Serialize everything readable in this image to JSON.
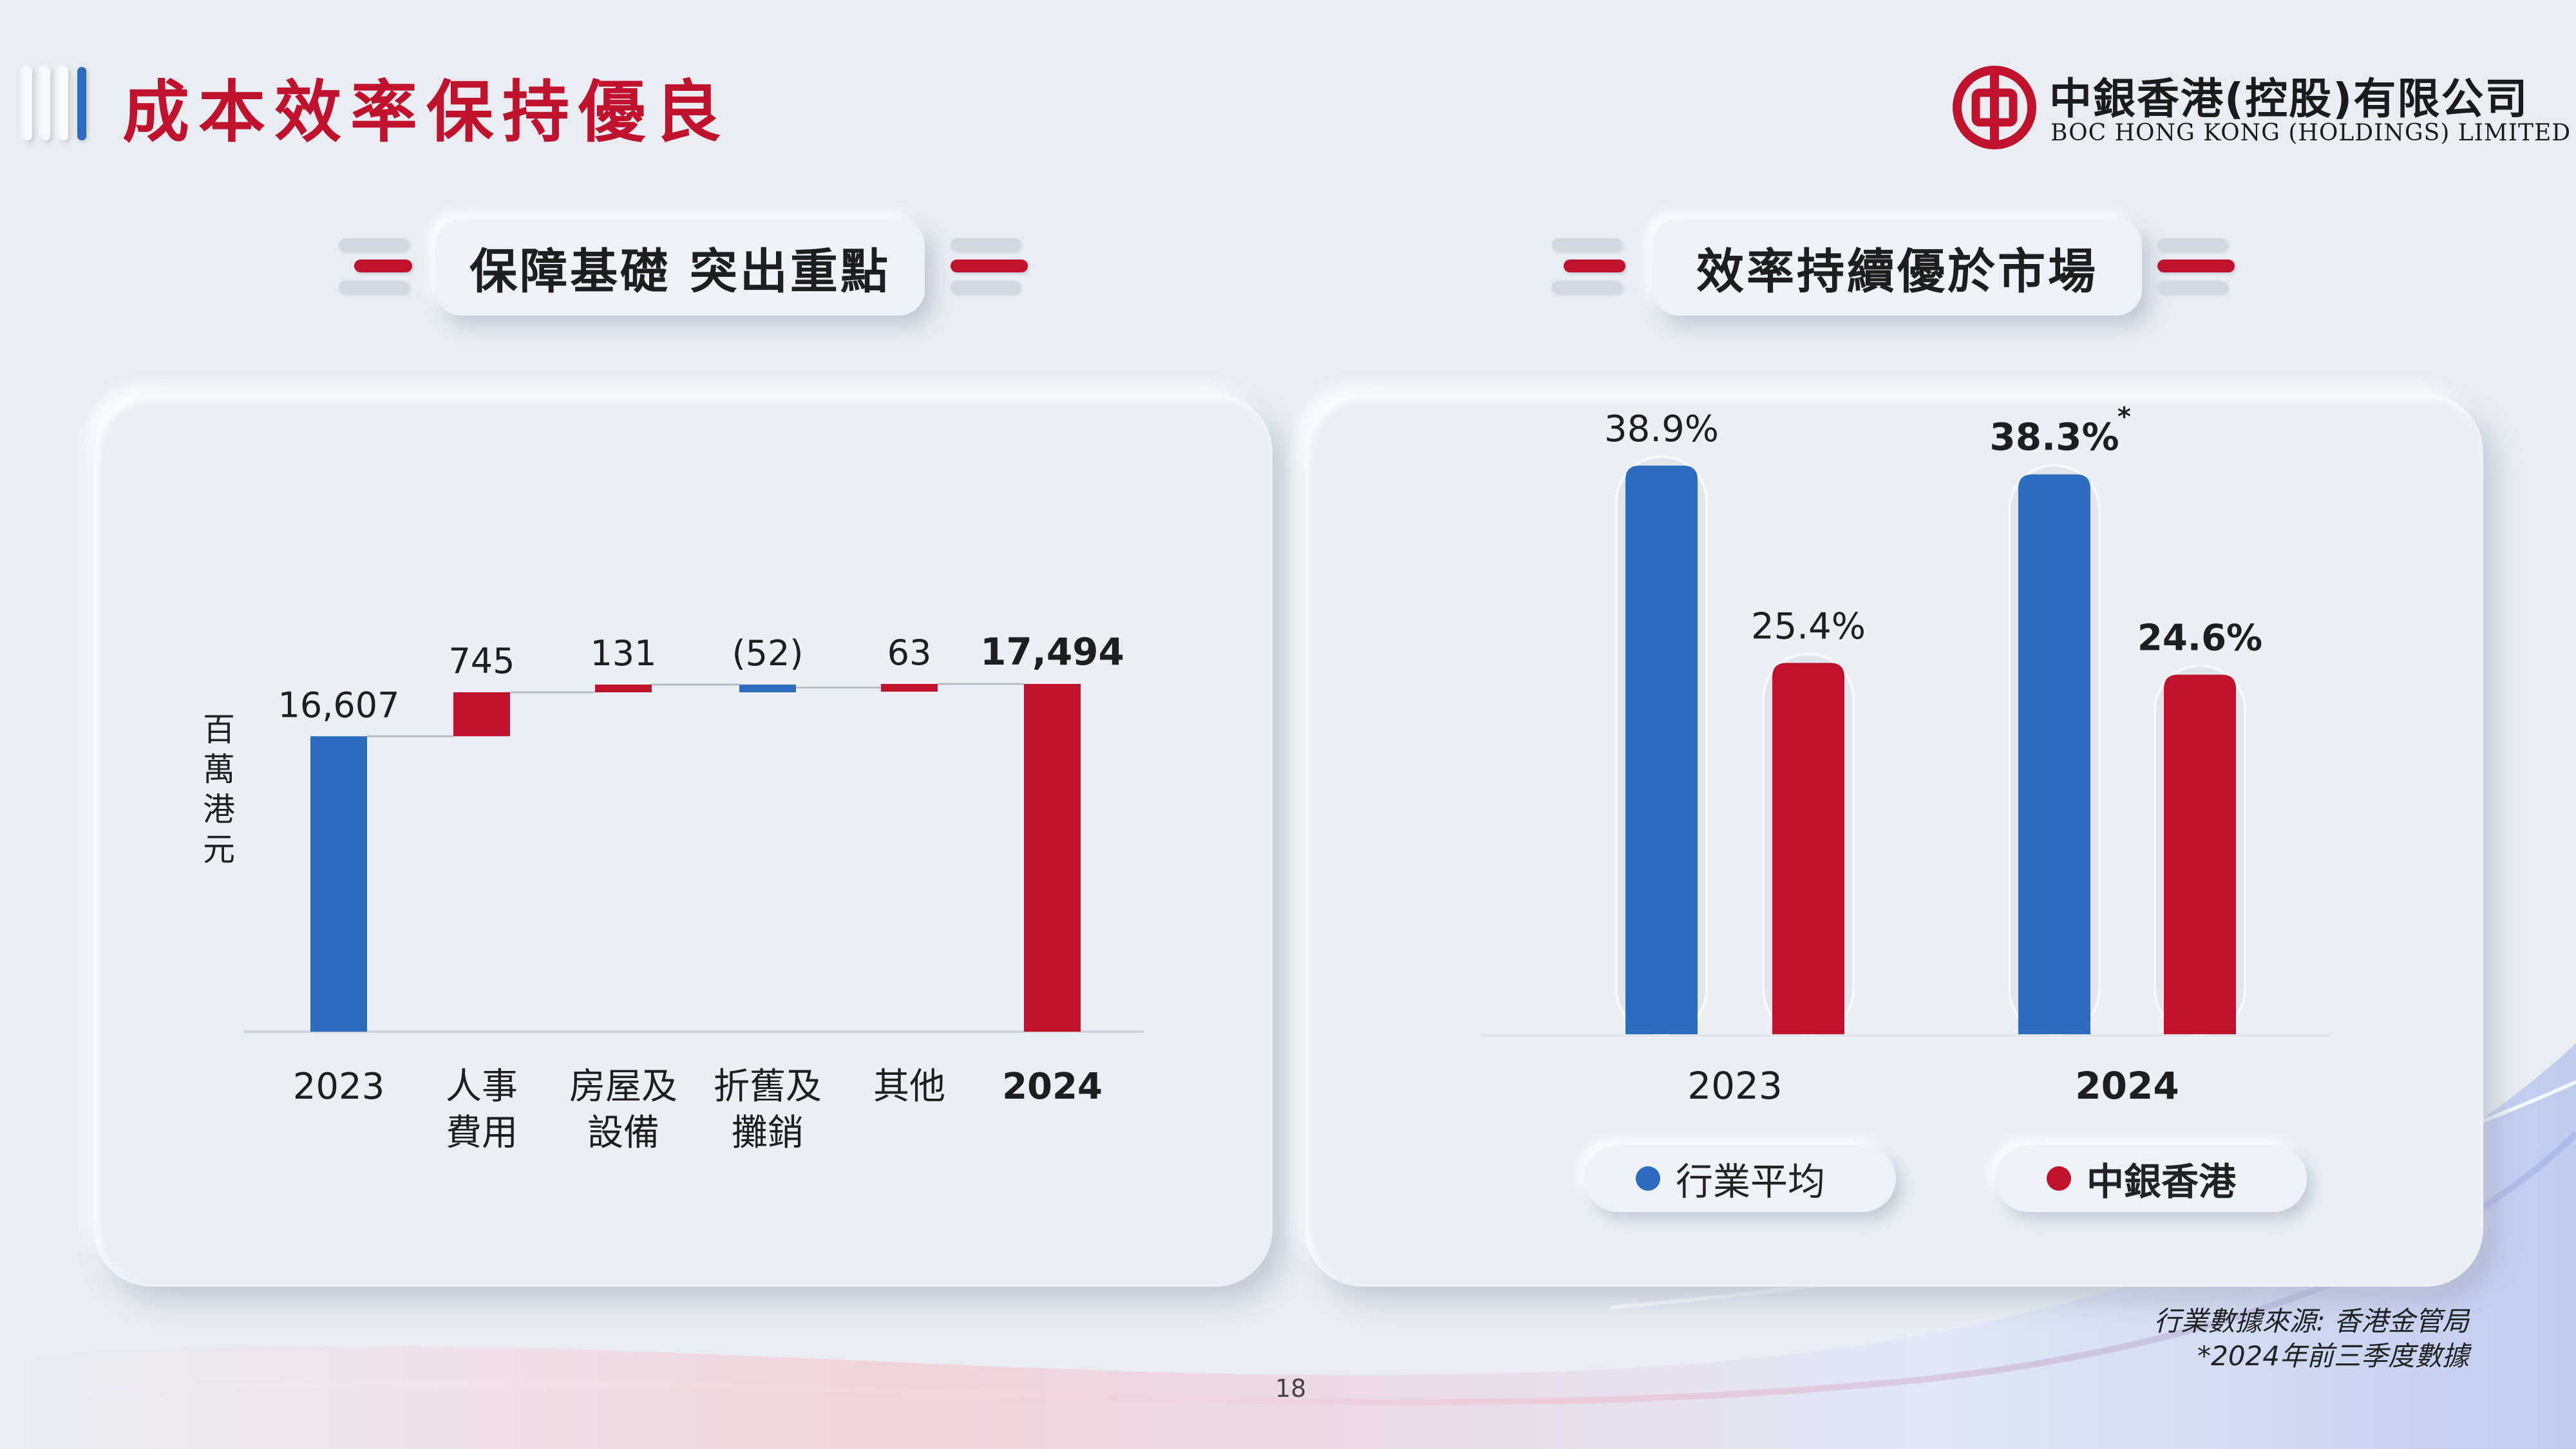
{
  "title": "成本效率保持優良",
  "logo": {
    "name_cn": "中銀香港(控股)有限公司",
    "name_en": "BOC HONG KONG (HOLDINGS) LIMITED",
    "brand_color": "#c0122d"
  },
  "sections": {
    "left": {
      "heading": "保障基礎 突出重點"
    },
    "right": {
      "heading": "效率持續優於市場"
    }
  },
  "colors": {
    "blue": "#2c6cbe",
    "red": "#c0122d",
    "accent": "#c0122d"
  },
  "chart_data": [
    {
      "type": "waterfall",
      "unit_label": "百萬港元",
      "categories": [
        "2023",
        "人事\n費用",
        "房屋及\n設備",
        "折舊及\n攤銷",
        "其他",
        "2024"
      ],
      "bars": [
        {
          "label": "2023",
          "kind": "total",
          "value": 16607,
          "display": "16,607",
          "color": "#2c6cbe"
        },
        {
          "label": "人事費用",
          "kind": "delta",
          "value": 745,
          "display": "745",
          "color": "#c0122d"
        },
        {
          "label": "房屋及設備",
          "kind": "delta",
          "value": 131,
          "display": "131",
          "color": "#c0122d"
        },
        {
          "label": "折舊及攤銷",
          "kind": "delta",
          "value": -52,
          "display": "(52)",
          "color": "#2c6cbe"
        },
        {
          "label": "其他",
          "kind": "delta",
          "value": 63,
          "display": "63",
          "color": "#c0122d"
        },
        {
          "label": "2024",
          "kind": "total",
          "value": 17494,
          "display": "17,494",
          "color": "#c0122d",
          "bold": true
        }
      ]
    },
    {
      "type": "bar",
      "categories": [
        "2023",
        "2024"
      ],
      "series": [
        {
          "name": "行業平均",
          "color": "#2c6cbe",
          "values": [
            38.9,
            38.3
          ],
          "labels": [
            "38.9%",
            "38.3%*"
          ]
        },
        {
          "name": "中銀香港",
          "color": "#c0122d",
          "values": [
            25.4,
            24.6
          ],
          "labels": [
            "25.4%",
            "24.6%"
          ]
        }
      ],
      "ylim": [
        0,
        45
      ],
      "legend_position": "bottom"
    }
  ],
  "legend": [
    {
      "label": "行業平均",
      "color": "#2c6cbe"
    },
    {
      "label": "中銀香港",
      "color": "#c0122d"
    }
  ],
  "footnotes": {
    "source": "行業數據來源:  香港金管局",
    "note": "*2024年前三季度數據"
  },
  "page_number": "18"
}
